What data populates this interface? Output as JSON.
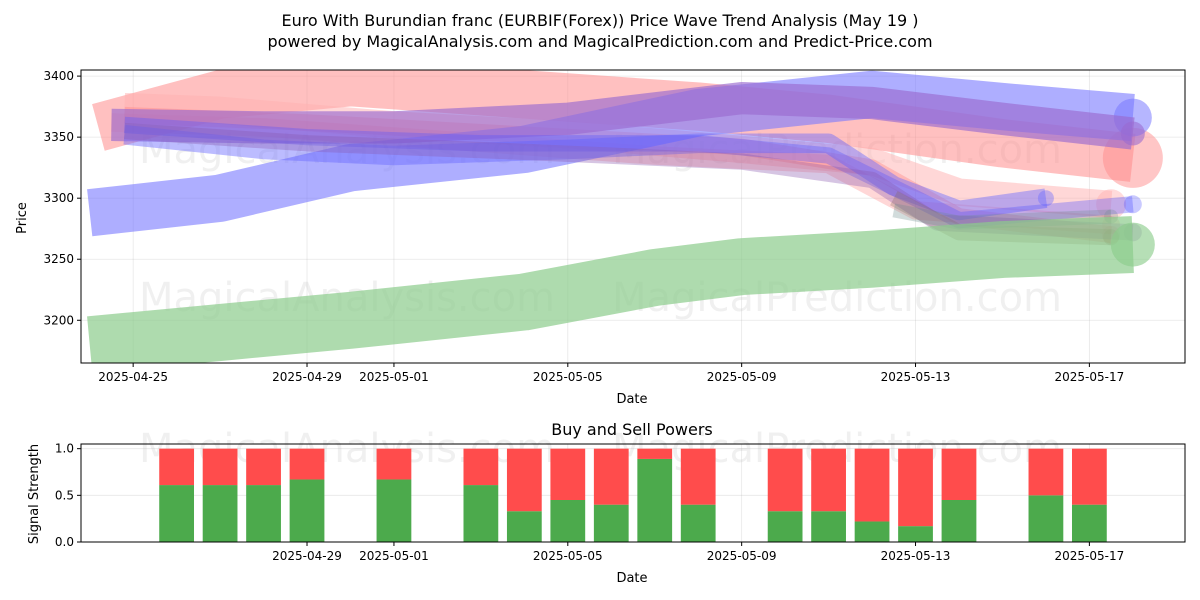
{
  "chart_data": [
    {
      "type": "area",
      "title_line1": "Euro With Burundian franc (EURBIF(Forex)) Price Wave Trend Analysis (May 19 )",
      "title_line2": "powered by MagicalAnalysis.com and MagicalPrediction.com and Predict-Price.com",
      "xlabel": "Date",
      "ylabel": "Price",
      "xlim": [
        "2025-04-23.8",
        "2025-05-19.2"
      ],
      "ylim": [
        3165,
        3405
      ],
      "x_ticks": [
        "2025-04-25",
        "2025-04-29",
        "2025-05-01",
        "2025-05-05",
        "2025-05-09",
        "2025-05-13",
        "2025-05-17"
      ],
      "y_ticks": [
        3200,
        3250,
        3300,
        3350,
        3400
      ],
      "grid": true,
      "watermark": [
        "MagicalAnalysis.com",
        "MagicalPrediction.com"
      ],
      "series": [
        {
          "color": "#ff8c8c",
          "opacity": 0.55,
          "x": [
            "2025-04-24.2",
            "2025-04-27",
            "2025-04-30",
            "2025-05-04",
            "2025-05-08",
            "2025-05-11",
            "2025-05-15",
            "2025-05-18"
          ],
          "y": [
            3358,
            3385,
            3395,
            3385,
            3375,
            3365,
            3345,
            3333
          ],
          "w": [
            58,
            50,
            46,
            42,
            40,
            40,
            50,
            60
          ]
        },
        {
          "color": "#ffb0b0",
          "opacity": 0.5,
          "x": [
            "2025-04-24.8",
            "2025-04-27",
            "2025-05-01",
            "2025-05-05",
            "2025-05-09",
            "2025-05-12",
            "2025-05-14",
            "2025-05-17.5"
          ],
          "y": [
            3375,
            3372,
            3360,
            3352,
            3340,
            3330,
            3305,
            3295
          ],
          "w": [
            40,
            30,
            24,
            22,
            24,
            22,
            26,
            30
          ]
        },
        {
          "color": "#ff9a9a",
          "opacity": 0.4,
          "x": [
            "2025-04-24.5",
            "2025-04-28",
            "2025-05-02",
            "2025-05-07",
            "2025-05-11",
            "2025-05-13",
            "2025-05-17.5"
          ],
          "y": [
            3362,
            3358,
            3348,
            3335,
            3328,
            3290,
            3278
          ],
          "w": [
            22,
            20,
            18,
            18,
            18,
            16,
            18
          ]
        },
        {
          "color": "#ff7a7a",
          "opacity": 0.35,
          "x": [
            "2025-04-24.8",
            "2025-04-29",
            "2025-05-04",
            "2025-05-09",
            "2025-05-12",
            "2025-05-14",
            "2025-05-17.5"
          ],
          "y": [
            3368,
            3362,
            3352,
            3342,
            3325,
            3285,
            3270
          ],
          "w": [
            18,
            16,
            16,
            16,
            16,
            16,
            18
          ]
        },
        {
          "color": "#7878ff",
          "opacity": 0.6,
          "x": [
            "2025-04-24",
            "2025-04-27",
            "2025-04-30",
            "2025-05-04",
            "2025-05-08",
            "2025-05-12",
            "2025-05-15",
            "2025-05-18"
          ],
          "y": [
            3288,
            3300,
            3325,
            3340,
            3370,
            3385,
            3375,
            3366
          ],
          "w": [
            56,
            54,
            52,
            50,
            46,
            42,
            40,
            38
          ]
        },
        {
          "color": "#9a6ad0",
          "opacity": 0.65,
          "x": [
            "2025-04-24.5",
            "2025-04-28",
            "2025-05-01",
            "2025-05-05",
            "2025-05-09",
            "2025-05-12",
            "2025-05-15",
            "2025-05-18"
          ],
          "y": [
            3360,
            3358,
            3358,
            3365,
            3382,
            3378,
            3365,
            3353
          ],
          "w": [
            26,
            30,
            34,
            38,
            40,
            36,
            30,
            24
          ]
        },
        {
          "color": "#6a6aff",
          "opacity": 0.45,
          "x": [
            "2025-04-24.8",
            "2025-04-28",
            "2025-05-01",
            "2025-05-05",
            "2025-05-08",
            "2025-05-11",
            "2025-05-12.5",
            "2025-05-14",
            "2025-05-16"
          ],
          "y": [
            3352,
            3340,
            3335,
            3340,
            3345,
            3345,
            3310,
            3290,
            3300
          ],
          "w": [
            22,
            22,
            20,
            20,
            20,
            20,
            18,
            18,
            16
          ]
        },
        {
          "color": "#5555ff",
          "opacity": 0.35,
          "x": [
            "2025-04-24.8",
            "2025-04-29",
            "2025-05-03",
            "2025-05-08",
            "2025-05-11",
            "2025-05-13",
            "2025-05-14",
            "2025-05-18"
          ],
          "y": [
            3360,
            3350,
            3345,
            3345,
            3335,
            3300,
            3282,
            3295
          ],
          "w": [
            16,
            16,
            16,
            16,
            16,
            16,
            16,
            18
          ]
        },
        {
          "color": "#8a5ab0",
          "opacity": 0.35,
          "x": [
            "2025-04-24.8",
            "2025-04-29",
            "2025-05-04",
            "2025-05-09",
            "2025-05-12",
            "2025-05-13.5",
            "2025-05-18"
          ],
          "y": [
            3355,
            3345,
            3338,
            3330,
            3315,
            3280,
            3272
          ],
          "w": [
            16,
            16,
            16,
            16,
            16,
            16,
            18
          ]
        },
        {
          "color": "#8c6a5a",
          "opacity": 0.3,
          "x": [
            "2025-05-12.5",
            "2025-05-14",
            "2025-05-17.5"
          ],
          "y": [
            3300,
            3272,
            3268
          ],
          "w": [
            16,
            16,
            16
          ]
        },
        {
          "color": "#6a8a8a",
          "opacity": 0.3,
          "x": [
            "2025-05-12.5",
            "2025-05-14",
            "2025-05-17.5"
          ],
          "y": [
            3290,
            3280,
            3285
          ],
          "w": [
            14,
            14,
            14
          ]
        },
        {
          "color": "#8ccc8c",
          "opacity": 0.7,
          "x": [
            "2025-04-24",
            "2025-04-27",
            "2025-04-30",
            "2025-05-04",
            "2025-05-07",
            "2025-05-09",
            "2025-05-12",
            "2025-05-15",
            "2025-05-18"
          ],
          "y": [
            3180,
            3190,
            3200,
            3215,
            3235,
            3244,
            3250,
            3258,
            3262
          ],
          "w": [
            66,
            62,
            60,
            58,
            58,
            58,
            56,
            50,
            44
          ]
        }
      ]
    },
    {
      "type": "bar",
      "title": "Buy and Sell Powers",
      "xlabel": "Date",
      "ylabel": "Signal Strength",
      "ylim": [
        0,
        1.05
      ],
      "y_ticks": [
        "0.0",
        "0.5",
        "1.0"
      ],
      "x_ticks": [
        "2025-04-29",
        "2025-05-01",
        "2025-05-05",
        "2025-05-09",
        "2025-05-13",
        "2025-05-17"
      ],
      "grid": true,
      "buy_color": "#4caa4c",
      "sell_color": "#ff4c4c",
      "x": [
        "2025-04-26",
        "2025-04-27",
        "2025-04-28",
        "2025-04-29",
        "2025-05-01",
        "2025-05-03",
        "2025-05-04",
        "2025-05-05",
        "2025-05-06",
        "2025-05-07",
        "2025-05-08",
        "2025-05-10",
        "2025-05-11",
        "2025-05-12",
        "2025-05-13",
        "2025-05-14",
        "2025-05-16",
        "2025-05-17"
      ],
      "buy": [
        0.61,
        0.61,
        0.61,
        0.67,
        0.67,
        0.61,
        0.33,
        0.45,
        0.4,
        0.89,
        0.4,
        0.33,
        0.33,
        0.22,
        0.17,
        0.45,
        0.5,
        0.4
      ]
    }
  ]
}
